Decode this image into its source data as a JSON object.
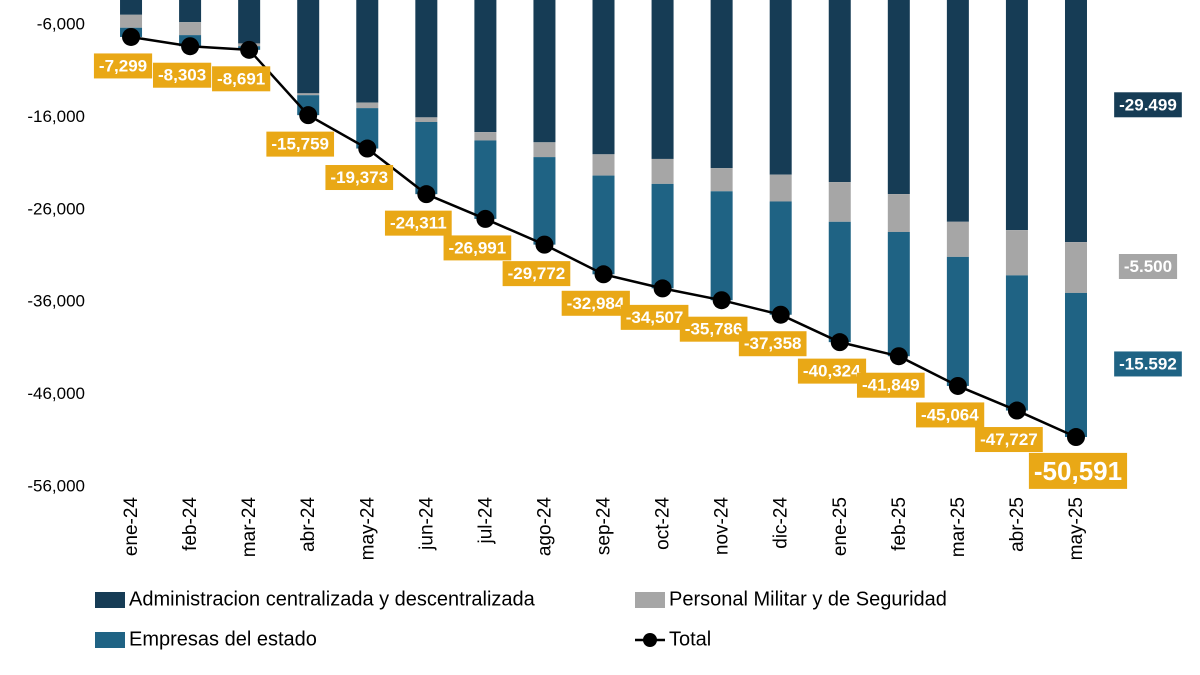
{
  "chart_data": {
    "type": "bar",
    "stacked": true,
    "categories": [
      "ene-24",
      "feb-24",
      "mar-24",
      "abr-24",
      "may-24",
      "jun-24",
      "jul-24",
      "ago-24",
      "sep-24",
      "oct-24",
      "nov-24",
      "dic-24",
      "ene-25",
      "feb-25",
      "mar-25",
      "abr-25",
      "may-25"
    ],
    "series": [
      {
        "name": "Administracion centralizada y descentralizada",
        "color": "#163c55",
        "values": [
          -4900,
          -5700,
          -8000,
          -13400,
          -14400,
          -16000,
          -17600,
          -18700,
          -20000,
          -20500,
          -21500,
          -22200,
          -23000,
          -24300,
          -27300,
          -28200,
          -29499
        ],
        "value_labels": [
          null,
          null,
          null,
          null,
          null,
          null,
          null,
          null,
          null,
          null,
          null,
          null,
          null,
          null,
          null,
          null,
          "-29.499"
        ]
      },
      {
        "name": "Personal Militar y de Seguridad",
        "color": "#a6a6a6",
        "values": [
          -1400,
          -1400,
          -300,
          -200,
          -600,
          -500,
          -900,
          -1600,
          -2300,
          -2700,
          -2500,
          -2900,
          -4300,
          -4100,
          -3800,
          -4900,
          -5500
        ],
        "value_labels": [
          null,
          null,
          null,
          null,
          null,
          null,
          null,
          null,
          null,
          null,
          null,
          null,
          null,
          null,
          null,
          null,
          "-5.500"
        ]
      },
      {
        "name": "Empresas del estado",
        "color": "#1f6384",
        "values": [
          -1000,
          -1203,
          -391,
          -2159,
          -4373,
          -7811,
          -8491,
          -9472,
          -10684,
          -11307,
          -11786,
          -12258,
          -13024,
          -13449,
          -13964,
          -14627,
          -15592
        ],
        "value_labels": [
          null,
          null,
          null,
          null,
          null,
          null,
          null,
          null,
          null,
          null,
          null,
          null,
          null,
          null,
          null,
          null,
          "-15.592"
        ]
      },
      {
        "name": "Total",
        "type": "line",
        "color": "#000000",
        "values": [
          -7299,
          -8303,
          -8691,
          -15759,
          -19373,
          -24311,
          -26991,
          -29772,
          -32984,
          -34507,
          -35786,
          -37358,
          -40324,
          -41849,
          -45064,
          -47727,
          -50591
        ],
        "value_labels": [
          "-7,299",
          "-8,303",
          "-8,691",
          "-15,759",
          "-19,373",
          "-24,311",
          "-26,991",
          "-29,772",
          "-32,984",
          "-34,507",
          "-35,786",
          "-37,358",
          "-40,324",
          "-41,849",
          "-45,064",
          "-47,727",
          "-50,591"
        ]
      }
    ],
    "ylim": [
      -56000,
      -3300
    ],
    "yticks": [
      {
        "value": -6000,
        "label": "-6,000"
      },
      {
        "value": -16000,
        "label": "-16,000"
      },
      {
        "value": -26000,
        "label": "-26,000"
      },
      {
        "value": -36000,
        "label": "-36,000"
      },
      {
        "value": -46000,
        "label": "-46,000"
      },
      {
        "value": -56000,
        "label": "-56,000"
      }
    ],
    "label_color": "#e9a816"
  }
}
